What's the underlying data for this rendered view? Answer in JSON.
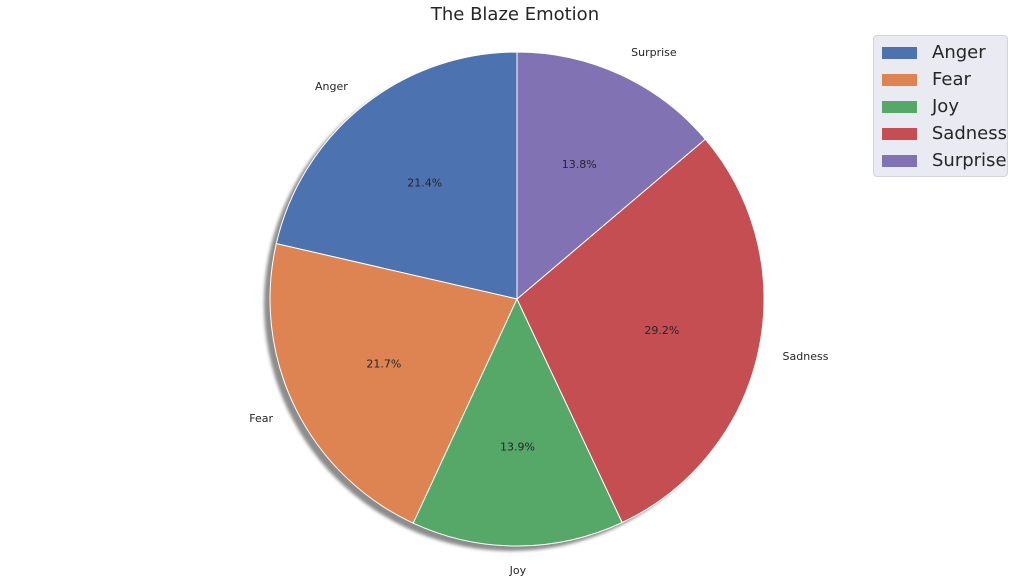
{
  "chart_data": {
    "type": "pie",
    "title": "The Blaze Emotion",
    "categories": [
      "Anger",
      "Fear",
      "Joy",
      "Sadness",
      "Surprise"
    ],
    "values": [
      21.4,
      21.7,
      13.9,
      29.2,
      13.8
    ],
    "value_labels": [
      "21.4%",
      "21.7%",
      "13.9%",
      "29.2%",
      "13.8%"
    ],
    "colors": [
      "#4c72b0",
      "#dd8452",
      "#55a868",
      "#c44e52",
      "#8172b3"
    ],
    "start_angle_deg": 90,
    "direction": "counterclockwise",
    "shadow": true,
    "legend": {
      "placement": "top-right",
      "entries": [
        "Anger",
        "Fear",
        "Joy",
        "Sadness",
        "Surprise"
      ]
    }
  }
}
